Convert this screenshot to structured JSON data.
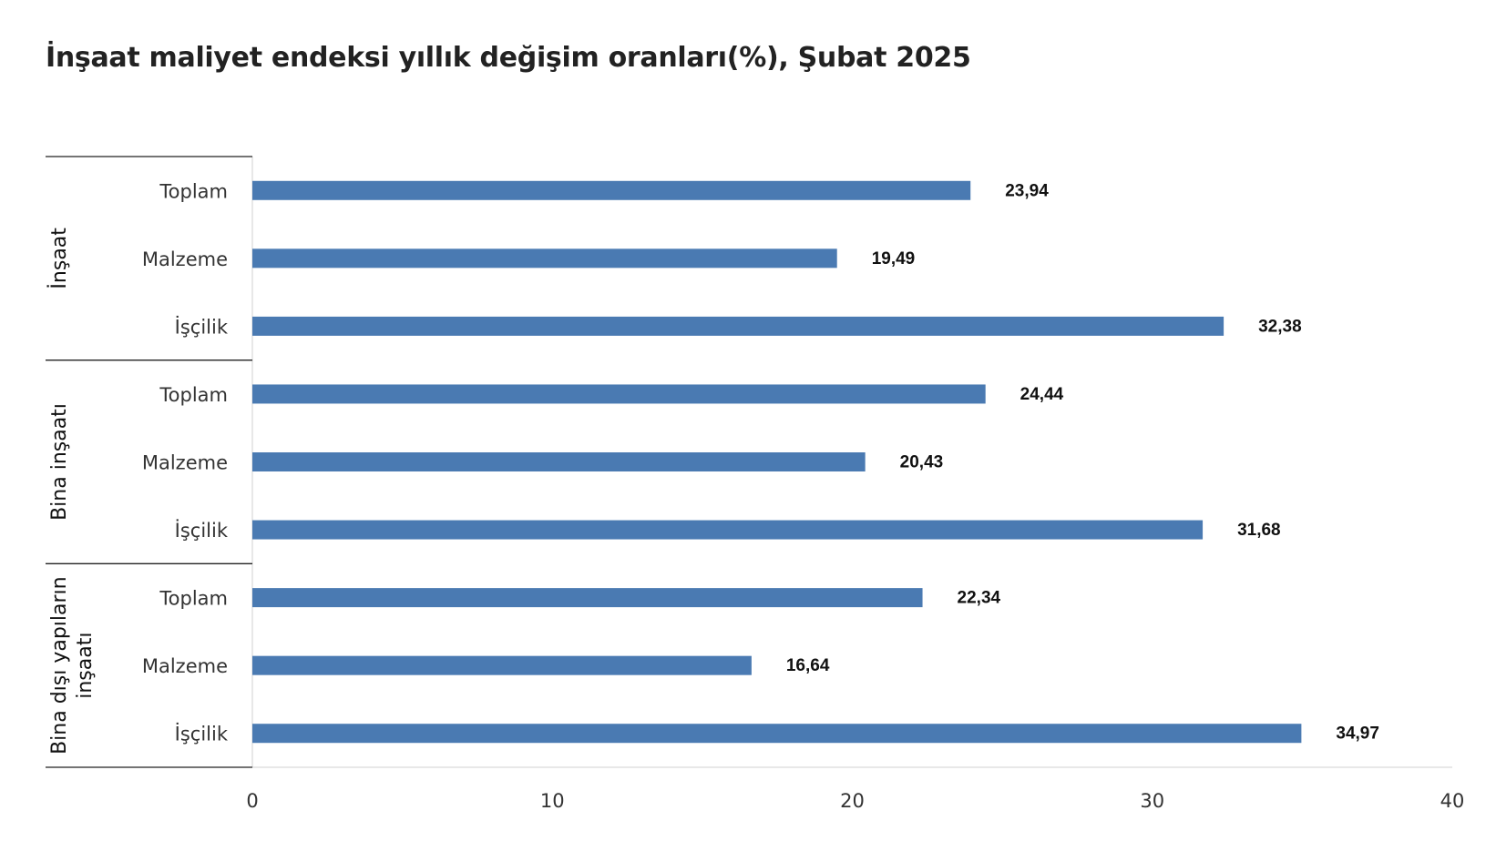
{
  "chart_data": {
    "type": "bar",
    "orientation": "horizontal",
    "title": "İnşaat maliyet endeksi yıllık değişim oranları(%), Şubat 2025",
    "groups": [
      {
        "name": "İnşaat",
        "categories": [
          "Toplam",
          "Malzeme",
          "İşçilik"
        ],
        "values": [
          23.94,
          19.49,
          32.38
        ],
        "labels": [
          "23,94",
          "19,49",
          "32,38"
        ]
      },
      {
        "name": "Bina inşaatı",
        "categories": [
          "Toplam",
          "Malzeme",
          "İşçilik"
        ],
        "values": [
          24.44,
          20.43,
          31.68
        ],
        "labels": [
          "24,44",
          "20,43",
          "31,68"
        ]
      },
      {
        "name": "Bina dışı yapıların inşaatı",
        "name_lines": [
          "Bina dışı yapıların",
          "inşaatı"
        ],
        "categories": [
          "Toplam",
          "Malzeme",
          "İşçilik"
        ],
        "values": [
          22.34,
          16.64,
          34.97
        ],
        "labels": [
          "22,34",
          "16,64",
          "34,97"
        ]
      }
    ],
    "xlim": [
      0,
      40
    ],
    "xticks": [
      "0",
      "10",
      "20",
      "30",
      "40"
    ],
    "bar_color": "#4a7ab2",
    "grid": false,
    "legend": "none"
  }
}
